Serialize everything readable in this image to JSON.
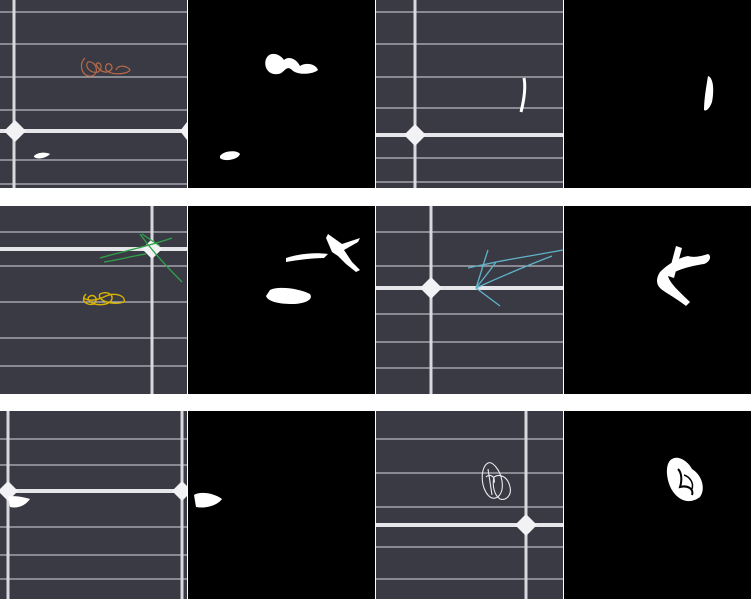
{
  "grid": {
    "rows": 3,
    "columns": 4,
    "separator_color": "#ffffff"
  },
  "colors": {
    "panel_background": "#3a3a44",
    "panel_background_alt": "#34343c",
    "finger_line": "#b9b9c2",
    "busbar": "#e6e6ea",
    "mask_background": "#000000",
    "mask_foreground": "#ffffff"
  },
  "pairs": [
    {
      "row": 1,
      "side": "left",
      "annotation_colors": [
        "#b86a48"
      ]
    },
    {
      "row": 1,
      "side": "right",
      "annotation_colors": [
        "#ffffff"
      ]
    },
    {
      "row": 2,
      "side": "left",
      "annotation_colors": [
        "#2fa24a",
        "#d9b400"
      ]
    },
    {
      "row": 2,
      "side": "right",
      "annotation_colors": [
        "#5fb3c8"
      ]
    },
    {
      "row": 3,
      "side": "left",
      "annotation_colors": [
        "#ffffff"
      ]
    },
    {
      "row": 3,
      "side": "right",
      "annotation_colors": [
        "#e9e9ee"
      ]
    }
  ]
}
